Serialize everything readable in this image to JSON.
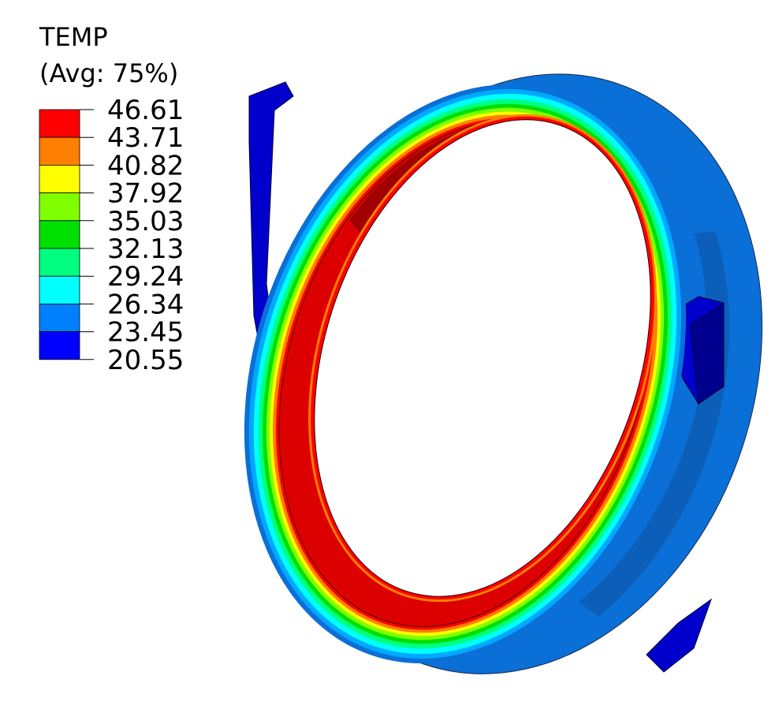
{
  "legend": {
    "title": "TEMP",
    "subtitle": "(Avg: 75%)",
    "values": [
      "46.61",
      "43.71",
      "40.82",
      "37.92",
      "35.03",
      "32.13",
      "29.24",
      "26.34",
      "23.45",
      "20.55"
    ],
    "colors": [
      "#ff0000",
      "#ff7f00",
      "#ffff00",
      "#80ff00",
      "#00e000",
      "#00ff80",
      "#00ffff",
      "#0080ff",
      "#0000ff"
    ]
  },
  "model": {
    "outer_color": "#0a6fd6",
    "outer_dark_color": "#0b5bb0",
    "bore_color": "#dd0000",
    "bore_dark_color": "#a00000",
    "lug_color": "#0000cc",
    "lug_dark_color": "#00008f"
  }
}
